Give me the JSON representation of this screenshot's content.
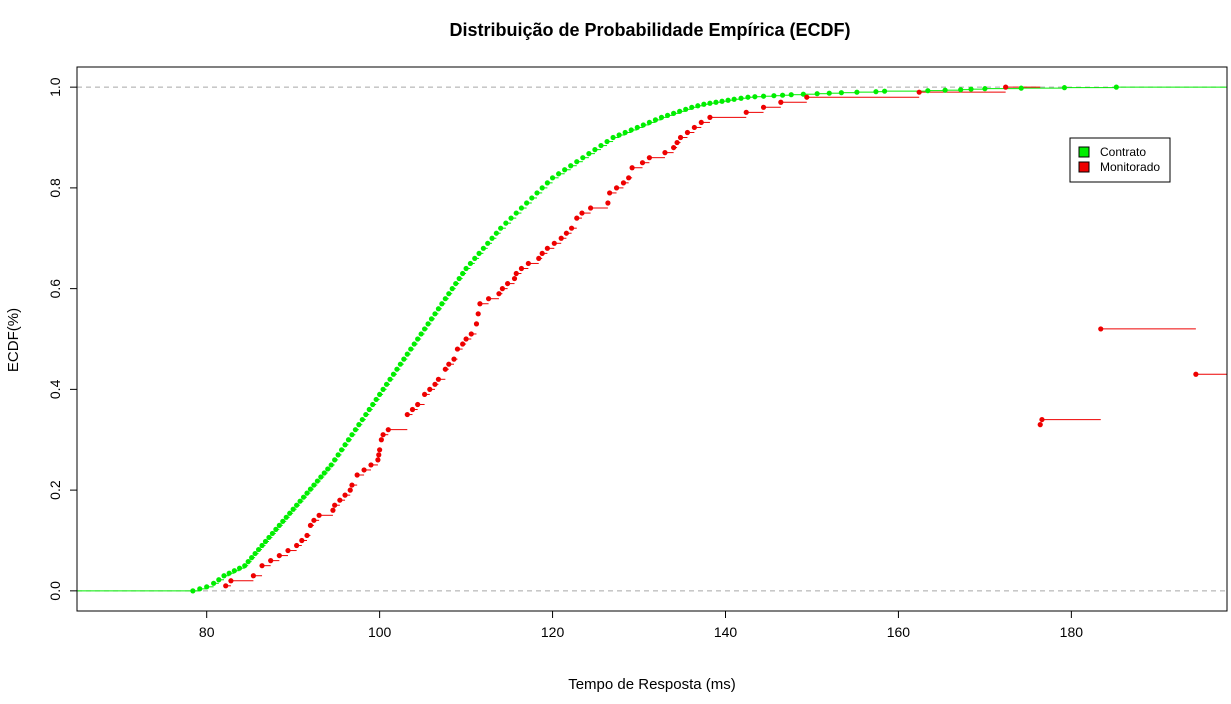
{
  "chart_data": {
    "type": "ecdf",
    "title": "Distribuição de Probabilidade Empírica (ECDF)",
    "xlabel": "Tempo de Resposta (ms)",
    "ylabel": "ECDF(%)",
    "xlim": [
      65,
      198
    ],
    "ylim": [
      -0.04,
      1.04
    ],
    "xticks": [
      80,
      100,
      120,
      140,
      160,
      180
    ],
    "yticks": [
      0.0,
      0.2,
      0.4,
      0.6,
      0.8,
      1.0
    ],
    "xtick_labels": [
      "80",
      "100",
      "120",
      "140",
      "160",
      "180"
    ],
    "ytick_labels": [
      "0.0",
      "0.2",
      "0.4",
      "0.6",
      "0.8",
      "1.0"
    ],
    "hlines": [
      0,
      1
    ],
    "legend_position": "top-right",
    "series": [
      {
        "name": "Contrato",
        "color": "#00ee00",
        "x": [
          78.4,
          79.2,
          80.0,
          80.8,
          81.4,
          82.0,
          82.6,
          83.2,
          83.8,
          84.4,
          84.8,
          85.2,
          85.6,
          86.0,
          86.4,
          86.8,
          87.2,
          87.6,
          88.0,
          88.4,
          88.8,
          89.2,
          89.6,
          90.0,
          90.4,
          90.8,
          91.2,
          91.6,
          92.0,
          92.4,
          92.8,
          93.2,
          93.6,
          94.0,
          94.4,
          94.8,
          95.2,
          95.6,
          96.0,
          96.4,
          96.8,
          97.2,
          97.6,
          98.0,
          98.4,
          98.8,
          99.2,
          99.6,
          100.0,
          100.4,
          100.8,
          101.2,
          101.6,
          102.0,
          102.4,
          102.8,
          103.2,
          103.6,
          104.0,
          104.4,
          104.8,
          105.2,
          105.6,
          106.0,
          106.4,
          106.8,
          107.2,
          107.6,
          108.0,
          108.4,
          108.8,
          109.2,
          109.6,
          110.0,
          110.5,
          111.0,
          111.5,
          112.0,
          112.5,
          113.0,
          113.5,
          114.0,
          114.6,
          115.2,
          115.8,
          116.4,
          117.0,
          117.6,
          118.2,
          118.8,
          119.4,
          120.0,
          120.7,
          121.4,
          122.1,
          122.8,
          123.5,
          124.2,
          124.9,
          125.6,
          126.3,
          127.0,
          127.7,
          128.4,
          129.1,
          129.8,
          130.5,
          131.2,
          131.9,
          132.6,
          133.3,
          134.0,
          134.7,
          135.4,
          136.1,
          136.8,
          137.5,
          138.2,
          138.9,
          139.6,
          140.3,
          141.0,
          141.8,
          142.6,
          143.4,
          144.4,
          145.6,
          146.6,
          147.6,
          149.0,
          150.6,
          152.0,
          153.4,
          155.2,
          157.4,
          158.4,
          163.4,
          165.4,
          167.2,
          168.4,
          170.0,
          174.2,
          179.2,
          185.2
        ],
        "y": [
          0.0,
          0.004,
          0.008,
          0.015,
          0.022,
          0.03,
          0.035,
          0.04,
          0.045,
          0.05,
          0.058,
          0.066,
          0.074,
          0.082,
          0.09,
          0.098,
          0.106,
          0.114,
          0.122,
          0.13,
          0.138,
          0.146,
          0.154,
          0.162,
          0.17,
          0.178,
          0.186,
          0.194,
          0.202,
          0.21,
          0.218,
          0.226,
          0.234,
          0.242,
          0.25,
          0.26,
          0.27,
          0.28,
          0.29,
          0.3,
          0.31,
          0.32,
          0.33,
          0.34,
          0.35,
          0.36,
          0.37,
          0.38,
          0.39,
          0.4,
          0.41,
          0.42,
          0.43,
          0.44,
          0.45,
          0.46,
          0.47,
          0.48,
          0.49,
          0.5,
          0.51,
          0.52,
          0.53,
          0.54,
          0.55,
          0.56,
          0.57,
          0.58,
          0.59,
          0.6,
          0.61,
          0.62,
          0.63,
          0.64,
          0.65,
          0.66,
          0.67,
          0.68,
          0.69,
          0.7,
          0.71,
          0.72,
          0.73,
          0.74,
          0.75,
          0.76,
          0.77,
          0.78,
          0.79,
          0.8,
          0.81,
          0.82,
          0.828,
          0.836,
          0.844,
          0.852,
          0.86,
          0.868,
          0.876,
          0.884,
          0.892,
          0.9,
          0.905,
          0.91,
          0.915,
          0.92,
          0.925,
          0.93,
          0.935,
          0.94,
          0.944,
          0.948,
          0.952,
          0.956,
          0.96,
          0.963,
          0.966,
          0.968,
          0.97,
          0.972,
          0.974,
          0.976,
          0.978,
          0.98,
          0.981,
          0.982,
          0.983,
          0.984,
          0.985,
          0.986,
          0.987,
          0.988,
          0.989,
          0.99,
          0.991,
          0.992,
          0.993,
          0.994,
          0.995,
          0.996,
          0.997,
          0.998,
          0.999,
          1.0
        ]
      },
      {
        "name": "Monitorado",
        "color": "#ee0000",
        "x": [
          82.2,
          82.8,
          85.4,
          86.4,
          87.4,
          88.4,
          89.4,
          90.4,
          91.0,
          91.6,
          92.0,
          92.4,
          93.0,
          94.6,
          94.8,
          95.4,
          96.0,
          96.6,
          96.8,
          97.4,
          98.2,
          99.0,
          99.8,
          99.9,
          100.0,
          100.2,
          100.4,
          101.0,
          103.2,
          103.8,
          104.4,
          105.2,
          105.8,
          106.4,
          106.8,
          107.6,
          108.0,
          108.6,
          109.0,
          109.6,
          110.0,
          110.6,
          111.2,
          111.4,
          111.6,
          112.6,
          113.8,
          114.2,
          114.8,
          115.6,
          115.8,
          116.4,
          117.2,
          118.4,
          118.8,
          119.4,
          120.2,
          121.0,
          121.6,
          122.2,
          122.8,
          123.4,
          124.4,
          126.4,
          126.6,
          127.4,
          128.2,
          128.8,
          129.2,
          130.4,
          131.2,
          133.0,
          134.0,
          134.4,
          134.8,
          135.6,
          136.4,
          137.2,
          138.2,
          142.4,
          144.4,
          146.4,
          149.4,
          162.4,
          172.4,
          176.4,
          176.6,
          183.4,
          194.4
        ],
        "y": [
          0.01,
          0.02,
          0.03,
          0.05,
          0.06,
          0.07,
          0.08,
          0.09,
          0.1,
          0.11,
          0.13,
          0.14,
          0.15,
          0.16,
          0.17,
          0.18,
          0.19,
          0.2,
          0.21,
          0.23,
          0.24,
          0.25,
          0.26,
          0.27,
          0.28,
          0.3,
          0.31,
          0.32,
          0.35,
          0.36,
          0.37,
          0.39,
          0.4,
          0.41,
          0.42,
          0.44,
          0.45,
          0.46,
          0.48,
          0.49,
          0.5,
          0.51,
          0.53,
          0.55,
          0.57,
          0.58,
          0.59,
          0.6,
          0.61,
          0.62,
          0.63,
          0.64,
          0.65,
          0.66,
          0.67,
          0.68,
          0.69,
          0.7,
          0.71,
          0.72,
          0.74,
          0.75,
          0.76,
          0.77,
          0.79,
          0.8,
          0.81,
          0.82,
          0.84,
          0.85,
          0.86,
          0.87,
          0.88,
          0.89,
          0.9,
          0.91,
          0.92,
          0.93,
          0.94,
          0.95,
          0.96,
          0.97,
          0.98,
          0.99,
          1.0,
          0.33,
          0.34,
          0.52,
          0.43
        ]
      }
    ]
  }
}
